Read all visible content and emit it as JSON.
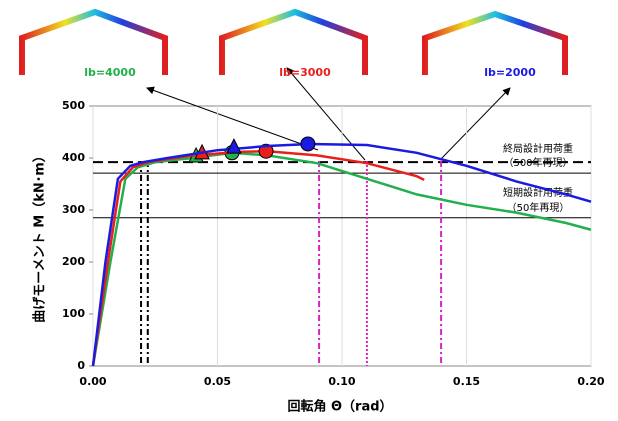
{
  "chart_data": {
    "type": "line",
    "xlabel": "回転角 Θ（rad）",
    "ylabel": "曲げモーメント M（kN･m）",
    "xlim": [
      0,
      0.2
    ],
    "ylim": [
      0,
      500
    ],
    "xticks": [
      {
        "value": 0,
        "label": "0.00"
      },
      {
        "value": 0.05,
        "label": "0.05"
      },
      {
        "value": 0.1,
        "label": "0.10"
      },
      {
        "value": 0.15,
        "label": "0.15"
      },
      {
        "value": 0.2,
        "label": "0.20"
      }
    ],
    "yticks": [
      0,
      100,
      200,
      300,
      400,
      500
    ],
    "grid": true,
    "series": [
      {
        "name": "lb=4000",
        "color": "#22b04c",
        "x": [
          0,
          0.007,
          0.013,
          0.018,
          0.025,
          0.04,
          0.056,
          0.07,
          0.09,
          0.11,
          0.13,
          0.15,
          0.17,
          0.19,
          0.2
        ],
        "values": [
          0,
          200,
          360,
          382,
          392,
          400,
          410,
          405,
          390,
          360,
          330,
          310,
          295,
          275,
          262
        ],
        "triangle": [
          0.0414,
          402
        ],
        "circle": [
          0.0558,
          410
        ]
      },
      {
        "name": "lb=3000",
        "color": "#e8201c",
        "x": [
          0,
          0.006,
          0.011,
          0.016,
          0.022,
          0.04,
          0.06,
          0.07,
          0.09,
          0.11,
          0.13,
          0.133
        ],
        "values": [
          0,
          200,
          355,
          382,
          392,
          405,
          412,
          413,
          405,
          390,
          365,
          358
        ],
        "triangle": [
          0.0438,
          408
        ],
        "circle": [
          0.0695,
          413
        ]
      },
      {
        "name": "lb=2000",
        "color": "#1a1ae0",
        "x": [
          0,
          0.005,
          0.01,
          0.015,
          0.02,
          0.03,
          0.05,
          0.07,
          0.087,
          0.11,
          0.13,
          0.15,
          0.17,
          0.19,
          0.2
        ],
        "values": [
          0,
          200,
          360,
          385,
          392,
          400,
          415,
          423,
          427,
          425,
          410,
          385,
          355,
          330,
          316
        ],
        "triangle": [
          0.0566,
          419
        ],
        "circle": [
          0.0863,
          427
        ]
      }
    ],
    "hlines": [
      {
        "value": 392,
        "color": "#000000",
        "style": "dashed"
      },
      {
        "value": 371,
        "color": "#000000",
        "style": "solid"
      },
      {
        "value": 285,
        "color": "#000000",
        "style": "solid"
      }
    ],
    "vlines": [
      {
        "value": 0.0193,
        "color": "#000000",
        "style": "dashdot"
      },
      {
        "value": 0.022,
        "color": "#000000",
        "style": "dashdot"
      },
      {
        "value": 0.0908,
        "color": "#e020c0",
        "style": "dashdot"
      },
      {
        "value": 0.11,
        "color": "#e020c0",
        "style": "dotted"
      },
      {
        "value": 0.1398,
        "color": "#e020c0",
        "style": "dashdot"
      }
    ],
    "annotations": [
      "終局設計用荷重",
      "（500年再現）",
      "短期設計用荷重",
      "（50年再現）"
    ]
  }
}
